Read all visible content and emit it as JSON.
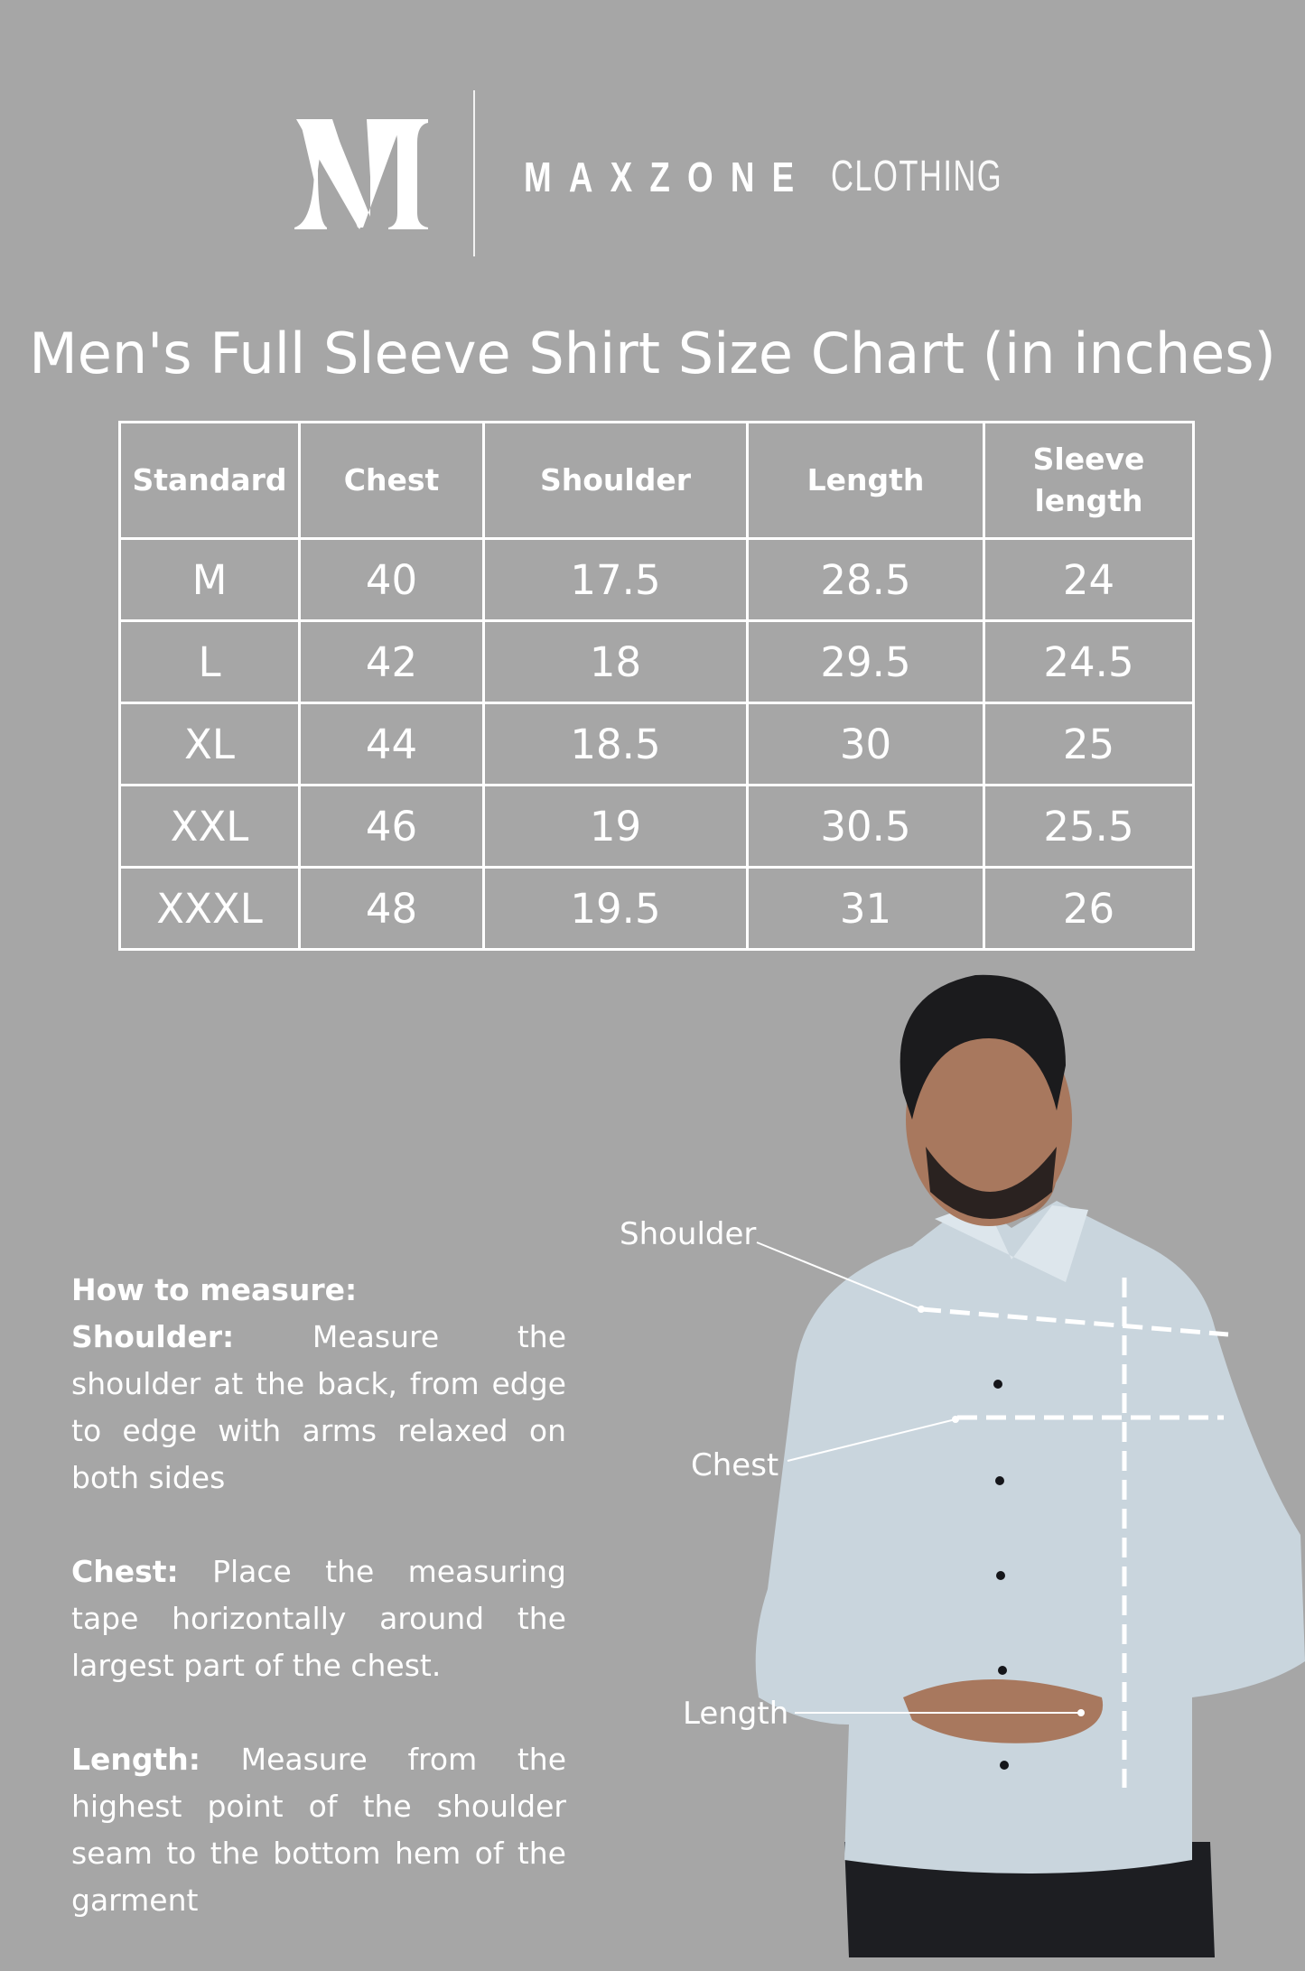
{
  "brand": {
    "logo_letter": "M",
    "name": "MAXZONE",
    "suffix": "CLOTHING",
    "registered": "®"
  },
  "title": "Men's Full Sleeve Shirt Size Chart (in inches)",
  "table": {
    "headers": [
      "Standard",
      "Chest",
      "Shoulder",
      "Length",
      "Sleeve length"
    ],
    "rows": [
      [
        "M",
        "40",
        "17.5",
        "28.5",
        "24"
      ],
      [
        "L",
        "42",
        "18",
        "29.5",
        "24.5"
      ],
      [
        "XL",
        "44",
        "18.5",
        "30",
        "25"
      ],
      [
        "XXL",
        "46",
        "19",
        "30.5",
        "25.5"
      ],
      [
        "XXXL",
        "48",
        "19.5",
        "31",
        "26"
      ]
    ]
  },
  "how_to": {
    "heading": "How to measure:",
    "items": [
      {
        "label": "Shoulder:",
        "text": "Measure the shoulder at the back, from edge to edge with arms relaxed on both sides"
      },
      {
        "label": "Chest:",
        "text": "Place the measuring tape horizontally around the largest part of the chest."
      },
      {
        "label": "Length:",
        "text": "Measure from the highest point of the shoulder seam to the bottom hem of the garment"
      }
    ]
  },
  "figure_labels": {
    "shoulder": "Shoulder",
    "chest": "Chest",
    "length": "Length"
  },
  "colors": {
    "background": "#a6a6a6",
    "text": "#ffffff",
    "shirt": "#c9d5dd"
  }
}
